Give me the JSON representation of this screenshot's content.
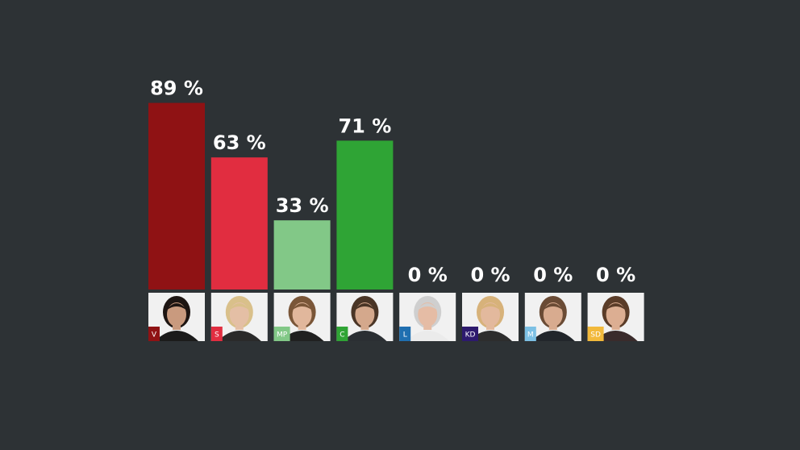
{
  "chart_data": {
    "type": "bar",
    "ylim": [
      0,
      100
    ],
    "categories": [
      "V",
      "S",
      "MP",
      "C",
      "L",
      "KD",
      "M",
      "SD"
    ],
    "values": [
      89,
      63,
      33,
      71,
      0,
      0,
      0,
      0
    ],
    "value_labels": [
      "89 %",
      "63 %",
      "33 %",
      "71 %",
      "0 %",
      "0 %",
      "0 %",
      "0 %"
    ],
    "colors": [
      "#8f1214",
      "#e12d40",
      "#82c887",
      "#2fa435",
      "#1f6fb0",
      "#2d1a6e",
      "#7cc0e4",
      "#f2b93b"
    ],
    "portraits": [
      {
        "hair": "#1d1512",
        "skin": "#c99a7e",
        "cloth": "#1b1b1b",
        "bg": "#f1f1f1"
      },
      {
        "hair": "#d9c08a",
        "skin": "#e4bfa5",
        "cloth": "#2a2a2a",
        "bg": "#f1f1f1"
      },
      {
        "hair": "#7a5638",
        "skin": "#e1b79c",
        "cloth": "#202020",
        "bg": "#f1f1f1"
      },
      {
        "hair": "#4a3526",
        "skin": "#d4a88c",
        "cloth": "#2b2f33",
        "bg": "#f1f1f1"
      },
      {
        "hair": "#cfcfcf",
        "skin": "#e5bca5",
        "cloth": "#ebebeb",
        "bg": "#f1f1f1"
      },
      {
        "hair": "#d7b27a",
        "skin": "#e3b99d",
        "cloth": "#2d2d2d",
        "bg": "#f1f1f1"
      },
      {
        "hair": "#6a4b35",
        "skin": "#d8ab8f",
        "cloth": "#22262b",
        "bg": "#f1f1f1"
      },
      {
        "hair": "#5a3c28",
        "skin": "#dcae92",
        "cloth": "#3a2b2b",
        "bg": "#f1f1f1"
      }
    ]
  }
}
